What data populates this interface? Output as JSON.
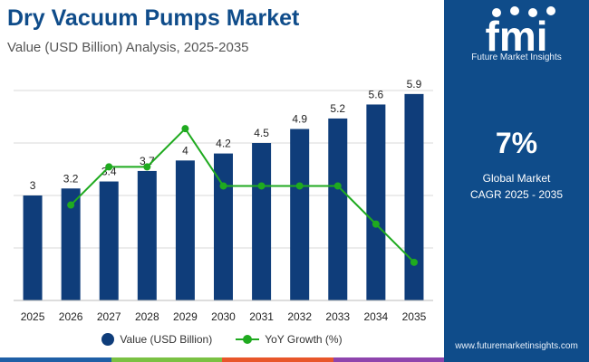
{
  "header": {
    "title": "Dry Vacuum Pumps Market",
    "subtitle": "Value (USD Billion) Analysis, 2025-2035"
  },
  "chart_data": {
    "type": "bar",
    "categories": [
      "2025",
      "2026",
      "2027",
      "2028",
      "2029",
      "2030",
      "2031",
      "2032",
      "2033",
      "2034",
      "2035"
    ],
    "series": [
      {
        "name": "Value (USD Billion)",
        "type": "bar",
        "color": "#0f3d7a",
        "values": [
          3,
          3.2,
          3.4,
          3.7,
          4,
          4.2,
          4.5,
          4.9,
          5.2,
          5.6,
          5.9
        ]
      },
      {
        "name": "YoY Growth (%)",
        "type": "line",
        "color": "#1faa1f",
        "values": [
          null,
          6.7,
          6.9,
          6.9,
          7.1,
          6.8,
          6.8,
          6.8,
          6.8,
          6.6,
          6.4
        ]
      }
    ],
    "bar_ylim": [
      0,
      6
    ],
    "line_ylim": [
      6.2,
      7.3
    ],
    "grid": true
  },
  "legend": {
    "bar_label": "Value (USD Billion)",
    "line_label": "YoY Growth (%)"
  },
  "sidebar": {
    "logo_text": "fmi",
    "brand": "Future Market Insights",
    "cagr_value": "7%",
    "cagr_label_line1": "Global Market",
    "cagr_label_line2": "CAGR 2025 - 2035",
    "url": "www.futuremarketinsights.com"
  },
  "colors": {
    "title": "#0f4c8a",
    "panel": "#0f4c8a",
    "bar": "#0f3d7a",
    "line": "#1faa1f",
    "stripe": [
      "#1f5fa6",
      "#7ac143",
      "#e8562a",
      "#8e44ad"
    ]
  }
}
